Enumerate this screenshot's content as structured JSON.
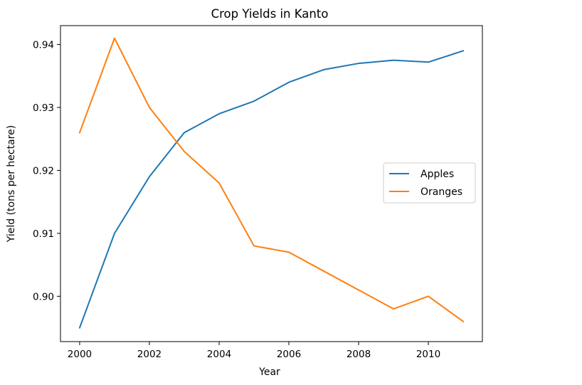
{
  "chart_data": {
    "type": "line",
    "title": "Crop Yields in Kanto",
    "xlabel": "Year",
    "ylabel": "Yield (tons per hectare)",
    "x": [
      2000,
      2001,
      2002,
      2003,
      2004,
      2005,
      2006,
      2007,
      2008,
      2009,
      2010,
      2011
    ],
    "xlim": [
      1999.45,
      2011.55
    ],
    "ylim": [
      0.8928,
      0.943
    ],
    "xticks": [
      2000,
      2002,
      2004,
      2006,
      2008,
      2010
    ],
    "xtick_labels": [
      "2000",
      "2002",
      "2004",
      "2006",
      "2008",
      "2010"
    ],
    "yticks": [
      0.9,
      0.91,
      0.92,
      0.93,
      0.94
    ],
    "ytick_labels": [
      "0.90",
      "0.91",
      "0.92",
      "0.93",
      "0.94"
    ],
    "grid": false,
    "legend_position": "center-right",
    "series": [
      {
        "name": "Apples",
        "color": "#1f77b4",
        "values": [
          0.895,
          0.91,
          0.919,
          0.926,
          0.929,
          0.931,
          0.934,
          0.936,
          0.937,
          0.9375,
          0.9372,
          0.939
        ]
      },
      {
        "name": "Oranges",
        "color": "#ff7f0e",
        "values": [
          0.926,
          0.941,
          0.93,
          0.923,
          0.918,
          0.908,
          0.907,
          0.904,
          0.901,
          0.898,
          0.9,
          0.896
        ]
      }
    ]
  }
}
